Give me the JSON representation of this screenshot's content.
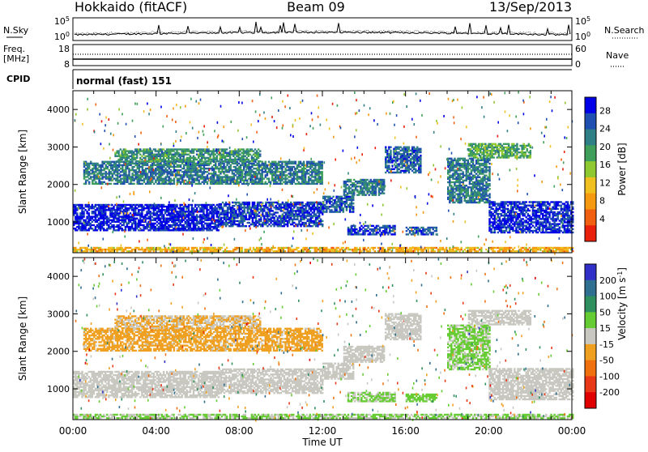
{
  "header": {
    "station": "Hokkaido (fitACF)",
    "beam": "Beam 09",
    "date": "13/Sep/2013"
  },
  "strips": {
    "nsky_label": "N.Sky",
    "nsearch_label": "N.Search",
    "freq_label_1": "Freq.",
    "freq_label_2": "[MHz]",
    "nave_label": "Nave",
    "cpid_label": "CPID",
    "cpid_value": "normal (fast) 151",
    "noise_left_ticks": [
      "10^5",
      "10^0"
    ],
    "noise_right_ticks": [
      "10^5",
      "10^0"
    ],
    "freq_left_ticks": [
      "18",
      "8"
    ],
    "freq_right_ticks": [
      "60",
      "0"
    ]
  },
  "chart_data": [
    {
      "type": "heatmap",
      "panel": "power",
      "xlabel": "",
      "ylabel": "Slant Range [km]",
      "ylim": [
        180,
        4500
      ],
      "y_ticks": [
        "1000",
        "2000",
        "3000",
        "4000"
      ],
      "colorbar": {
        "label": "Power [dB]",
        "ticks": [
          "4",
          "8",
          "12",
          "16",
          "20",
          "24",
          "28"
        ],
        "range": [
          0,
          30
        ],
        "colors": [
          "#0000e8",
          "#1f4fb0",
          "#2f7f86",
          "#3f9f5a",
          "#8fc830",
          "#f0c020",
          "#f59a10",
          "#f06010",
          "#e8200c"
        ]
      },
      "bands": [
        {
          "t": [
            0,
            7
          ],
          "r": [
            760,
            1480
          ],
          "value": 28
        },
        {
          "t": [
            7,
            12
          ],
          "r": [
            870,
            1530
          ],
          "value": 26
        },
        {
          "t": [
            12,
            13.5
          ],
          "r": [
            1250,
            1700
          ],
          "value": 24
        },
        {
          "t": [
            13,
            15
          ],
          "r": [
            1700,
            2150
          ],
          "value": 22
        },
        {
          "t": [
            15,
            16.7
          ],
          "r": [
            2300,
            3000
          ],
          "value": 24
        },
        {
          "t": [
            0.5,
            12
          ],
          "r": [
            2000,
            2600
          ],
          "value": 22
        },
        {
          "t": [
            2,
            9
          ],
          "r": [
            2600,
            2950
          ],
          "value": 20
        },
        {
          "t": [
            13.2,
            15.5
          ],
          "r": [
            650,
            900
          ],
          "value": 26
        },
        {
          "t": [
            16,
            17.5
          ],
          "r": [
            650,
            850
          ],
          "value": 24
        },
        {
          "t": [
            18,
            20
          ],
          "r": [
            1500,
            2700
          ],
          "value": 22
        },
        {
          "t": [
            20,
            24
          ],
          "r": [
            700,
            1550
          ],
          "value": 27
        },
        {
          "t": [
            19,
            22
          ],
          "r": [
            2700,
            3100
          ],
          "value": 18
        },
        {
          "t": [
            0,
            24
          ],
          "r": [
            200,
            330
          ],
          "value": 10
        }
      ]
    },
    {
      "type": "heatmap",
      "panel": "velocity",
      "xlabel": "Time UT",
      "ylabel": "Slant Range [km]",
      "ylim": [
        180,
        4500
      ],
      "y_ticks": [
        "1000",
        "2000",
        "3000",
        "4000"
      ],
      "x_ticks": [
        "00:00",
        "04:00",
        "08:00",
        "12:00",
        "16:00",
        "20:00",
        "00:00"
      ],
      "xlim_hours": [
        0,
        24
      ],
      "colorbar": {
        "label": "Velocity [m s^-1]",
        "ticks": [
          "200",
          "100",
          "50",
          "15",
          "-15",
          "-50",
          "-100",
          "-200"
        ],
        "range": [
          -250,
          250
        ],
        "colors": [
          "#3030c8",
          "#2f6f8f",
          "#2f8f5f",
          "#66cc33",
          "#c8c8c0",
          "#f0a020",
          "#f07010",
          "#e83818",
          "#e00000"
        ]
      },
      "bands": [
        {
          "t": [
            0,
            7
          ],
          "r": [
            760,
            1480
          ],
          "value": 0
        },
        {
          "t": [
            7,
            12
          ],
          "r": [
            870,
            1530
          ],
          "value": 0
        },
        {
          "t": [
            12,
            13.5
          ],
          "r": [
            1250,
            1700
          ],
          "value": 0
        },
        {
          "t": [
            13,
            15
          ],
          "r": [
            1700,
            2150
          ],
          "value": 0
        },
        {
          "t": [
            15,
            16.7
          ],
          "r": [
            2300,
            3000
          ],
          "value": 0
        },
        {
          "t": [
            0.5,
            12
          ],
          "r": [
            2000,
            2600
          ],
          "value": -40
        },
        {
          "t": [
            2,
            9
          ],
          "r": [
            2600,
            2950
          ],
          "value": -30
        },
        {
          "t": [
            13.2,
            15.5
          ],
          "r": [
            650,
            900
          ],
          "value": 30
        },
        {
          "t": [
            16,
            17.5
          ],
          "r": [
            650,
            850
          ],
          "value": 40
        },
        {
          "t": [
            18,
            20
          ],
          "r": [
            1500,
            2700
          ],
          "value": 35
        },
        {
          "t": [
            20,
            24
          ],
          "r": [
            700,
            1550
          ],
          "value": 0
        },
        {
          "t": [
            19,
            22
          ],
          "r": [
            2700,
            3100
          ],
          "value": 0
        },
        {
          "t": [
            0,
            24
          ],
          "r": [
            200,
            330
          ],
          "value": 30
        }
      ]
    }
  ]
}
